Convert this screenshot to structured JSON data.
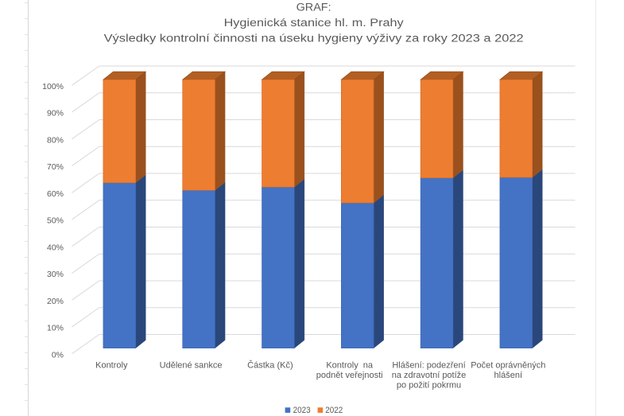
{
  "app": {
    "kind": "spreadsheet-embedded-chart",
    "background_color": "#ffffff",
    "sheet_gridline_color": "#d6d6d6",
    "sheet_gridline_right_color": "#e9e9e9",
    "sheet_row_tick_color": "#e3e3e3"
  },
  "chart_data": {
    "type": "bar",
    "subtype": "100%-stacked-column-3d",
    "title": "GRAF: Hygienická stanice hl. m. Prahy Výsledky kontrolní činnosti na úseku hygieny výživy za roky 2023 a 2022",
    "title_lines": [
      "GRAF:",
      "Hygienická stanice hl. m. Prahy",
      "Výsledky kontrolní činnosti na úseku hygieny výživy za roky 2023 a 2022"
    ],
    "categories": [
      "Kontroly",
      "Udělené sankce",
      "Částka (Kč)",
      "Kontroly  na podnět veřejnosti",
      "Hlášení: podezření na zdravotní potíže po požití pokrmu",
      "Počet oprávněných hlášení"
    ],
    "category_label_lines": [
      [
        "Kontroly"
      ],
      [
        "Udělené sankce"
      ],
      [
        "Částka (Kč)"
      ],
      [
        "Kontroly  na",
        "podnět veřejnosti"
      ],
      [
        "Hlášení: podezření",
        "na zdravotní potíže",
        "po požití pokrmu"
      ],
      [
        "Počet oprávněných",
        "hlášení"
      ]
    ],
    "series": [
      {
        "name": "2023",
        "values_pct": [
          61.6,
          58.8,
          60.0,
          54.1,
          63.4,
          63.6
        ],
        "front_color": "#4472C4",
        "side_color": "#2A477B",
        "top_color": "#35599B"
      },
      {
        "name": "2022",
        "values_pct": [
          38.4,
          41.2,
          40.0,
          45.9,
          36.6,
          36.4
        ],
        "front_color": "#ED7D31",
        "side_color": "#9A511E",
        "top_color": "#B35F24"
      }
    ],
    "y_axis": {
      "min": 0,
      "max": 100,
      "step": 10,
      "tick_labels": [
        "0%",
        "10%",
        "20%",
        "30%",
        "40%",
        "50%",
        "60%",
        "70%",
        "80%",
        "90%",
        "100%"
      ]
    },
    "legend": {
      "position": "bottom",
      "entries": [
        {
          "label": "2023",
          "color": "#4472C4"
        },
        {
          "label": "2022",
          "color": "#ED7D31"
        }
      ]
    },
    "grid": true,
    "gridline_color": "#D9D9D9",
    "text_color": "#595959"
  }
}
